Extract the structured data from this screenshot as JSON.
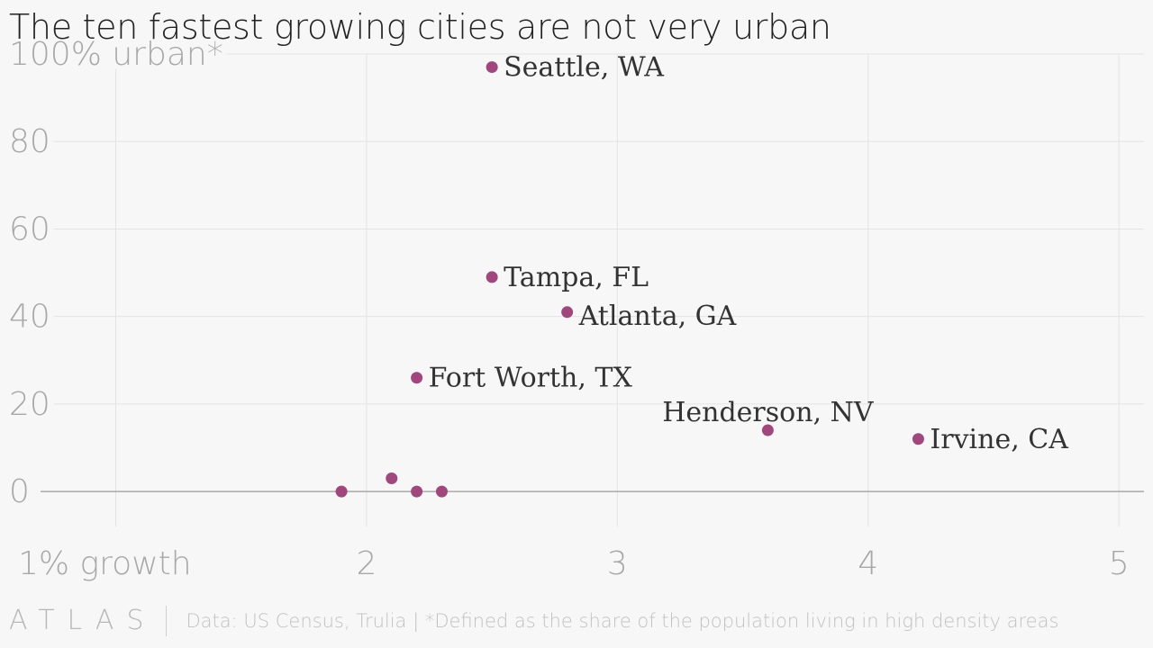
{
  "title": "The ten fastest growing cities are not very urban",
  "footer": {
    "logo": "ATLAS",
    "source": "Data: US Census, Trulia | *Defined as the share of the population living in high density areas"
  },
  "colors": {
    "point": "#a0477e",
    "grid": "#e4e4e4",
    "zero_line": "#9a9a9a",
    "tick_text": "#a8a8a8"
  },
  "chart_data": {
    "type": "scatter",
    "xlim": [
      0.7,
      5.1
    ],
    "ylim": [
      -8,
      100
    ],
    "x_ticks": [
      {
        "value": 1,
        "label": "1% growth"
      },
      {
        "value": 2,
        "label": "2"
      },
      {
        "value": 3,
        "label": "3"
      },
      {
        "value": 4,
        "label": "4"
      },
      {
        "value": 5,
        "label": "5"
      }
    ],
    "y_ticks": [
      {
        "value": 0,
        "label": "0"
      },
      {
        "value": 20,
        "label": "20"
      },
      {
        "value": 40,
        "label": "40"
      },
      {
        "value": 60,
        "label": "60"
      },
      {
        "value": 80,
        "label": "80"
      },
      {
        "value": 100,
        "label": "100% urban*"
      }
    ],
    "grid": true,
    "points": [
      {
        "x": 2.5,
        "y": 97,
        "label": "Seattle, WA",
        "label_pos": "right"
      },
      {
        "x": 2.5,
        "y": 49,
        "label": "Tampa, FL",
        "label_pos": "right"
      },
      {
        "x": 2.8,
        "y": 41,
        "label": "Atlanta, GA",
        "label_pos": "right-below"
      },
      {
        "x": 2.2,
        "y": 26,
        "label": "Fort Worth, TX",
        "label_pos": "right"
      },
      {
        "x": 3.6,
        "y": 14,
        "label": "Henderson, NV",
        "label_pos": "above"
      },
      {
        "x": 4.2,
        "y": 12,
        "label": "Irvine, CA",
        "label_pos": "right"
      },
      {
        "x": 1.9,
        "y": 0,
        "label": "",
        "label_pos": "none"
      },
      {
        "x": 2.1,
        "y": 3,
        "label": "",
        "label_pos": "none"
      },
      {
        "x": 2.2,
        "y": 0,
        "label": "",
        "label_pos": "none"
      },
      {
        "x": 2.3,
        "y": 0,
        "label": "",
        "label_pos": "none"
      }
    ]
  }
}
